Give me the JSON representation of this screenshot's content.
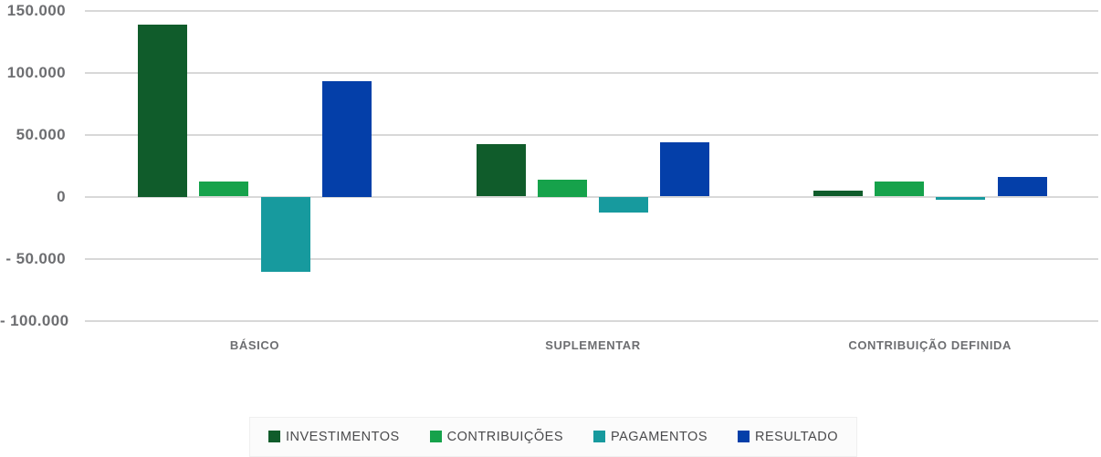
{
  "chart_data": {
    "type": "bar",
    "title": "",
    "xlabel": "",
    "ylabel": "",
    "categories": [
      "BÁSICO",
      "SUPLEMENTAR",
      "CONTRIBUIÇÃO DEFINIDA"
    ],
    "series": [
      {
        "name": "INVESTIMENTOS",
        "color": "#105c2b",
        "values": [
          139000,
          42000,
          5000
        ]
      },
      {
        "name": "CONTRIBUIÇÕES",
        "color": "#16a24b",
        "values": [
          12000,
          14000,
          12000
        ]
      },
      {
        "name": "PAGAMENTOS",
        "color": "#179a9e",
        "values": [
          -60500,
          -13000,
          -2500
        ]
      },
      {
        "name": "RESULTADO",
        "color": "#043fa9",
        "values": [
          93000,
          44000,
          16000
        ]
      }
    ],
    "yticks": [
      {
        "value": 150000,
        "label": "150.000"
      },
      {
        "value": 100000,
        "label": "100.000"
      },
      {
        "value": 50000,
        "label": "50.000"
      },
      {
        "value": 0,
        "label": "0"
      },
      {
        "value": -50000,
        "label": "- 50.000"
      },
      {
        "value": -100000,
        "label": "- 100.000"
      }
    ],
    "ylim": [
      -100000,
      150000
    ],
    "grid": true,
    "legend_position": "bottom-center"
  },
  "colors": {
    "background": "#ffffff",
    "gridline": "#d8d8d8",
    "axis_text": "#6d6e71",
    "legend_text": "#4a4a4c",
    "legend_bg": "#fbfbfb"
  }
}
